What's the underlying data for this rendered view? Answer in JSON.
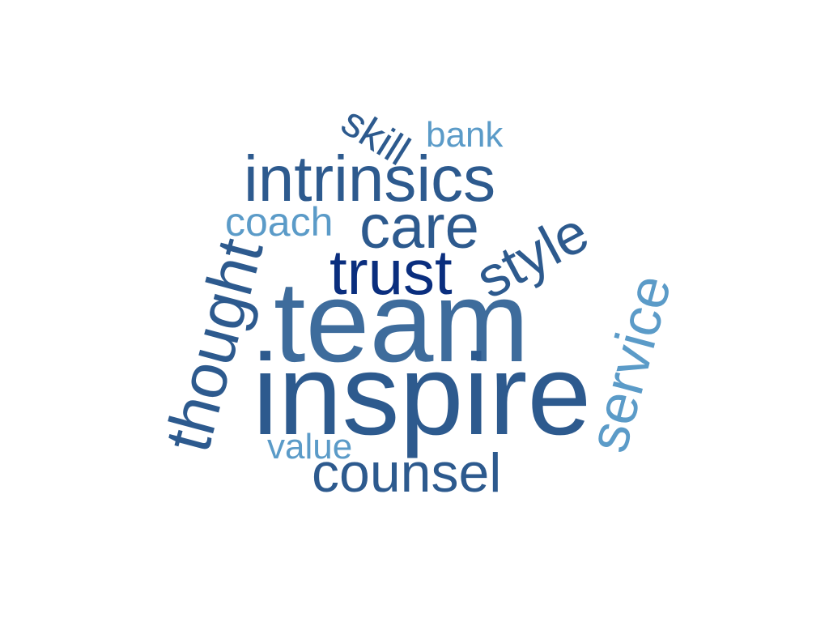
{
  "palette": {
    "dark_navy": "#0a2e7e",
    "mid_blue": "#2d5a8e",
    "steel_blue": "#3e6c9c",
    "light_blue": "#5b9bc8"
  },
  "words": {
    "skill": {
      "text": "skill",
      "color": "#2d5a8e"
    },
    "bank": {
      "text": "bank",
      "color": "#5b9bc8"
    },
    "intrinsics": {
      "text": "intrinsics",
      "color": "#2d5a8e"
    },
    "coach": {
      "text": "coach",
      "color": "#5b9bc8"
    },
    "care": {
      "text": "care",
      "color": "#2d5a8e"
    },
    "style": {
      "text": "style",
      "color": "#2d5a8e"
    },
    "trust": {
      "text": "trust",
      "color": "#0a2e7e"
    },
    "thought": {
      "text": "thought",
      "color": "#2d5a8e"
    },
    "service": {
      "text": "service",
      "color": "#5b9bc8"
    },
    "team": {
      "text": "team",
      "color": "#3e6c9c"
    },
    "inspire": {
      "text": "inspire",
      "color": "#2d5a8e"
    },
    "value": {
      "text": "value",
      "color": "#5b9bc8"
    },
    "counsel": {
      "text": "counsel",
      "color": "#2d5a8e"
    }
  }
}
